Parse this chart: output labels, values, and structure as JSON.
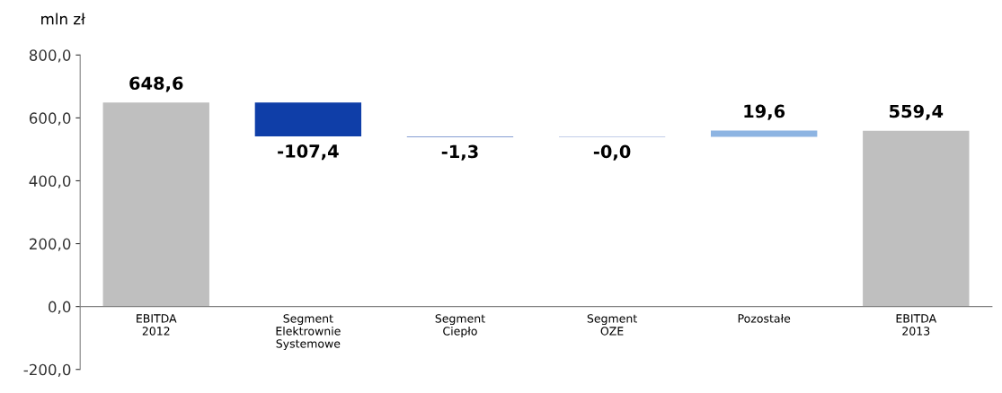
{
  "chart_data": {
    "type": "bar",
    "ylabel": "mln zł",
    "categories": [
      "EBITDA\n2012",
      "Segment\nElektrownie\nSystemowe",
      "Segment\nCiepło",
      "Segment\nOZE",
      "Pozostałe",
      "EBITDA\n2013"
    ],
    "values": [
      648.6,
      -107.4,
      -1.3,
      -0.0,
      19.6,
      559.4
    ],
    "base": [
      0,
      648.6,
      541.2,
      539.9,
      539.9,
      0
    ],
    "colors": [
      "#bfbfbf",
      "#0f3ea8",
      "#0f3ea8",
      "#0f3ea8",
      "#8db4e2",
      "#bfbfbf"
    ],
    "value_labels": [
      "648,6",
      "-107,4",
      "-1,3",
      "-0,0",
      "19,6",
      "559,4"
    ],
    "ylim": [
      -200,
      800
    ],
    "yticks": [
      {
        "value": -200,
        "label": "-200,0"
      },
      {
        "value": 0,
        "label": "0,0"
      },
      {
        "value": 200,
        "label": "200,0"
      },
      {
        "value": 400,
        "label": "400,0"
      },
      {
        "value": 600,
        "label": "600,0"
      },
      {
        "value": 800,
        "label": "800,0"
      }
    ],
    "grid": false,
    "legend": false
  }
}
